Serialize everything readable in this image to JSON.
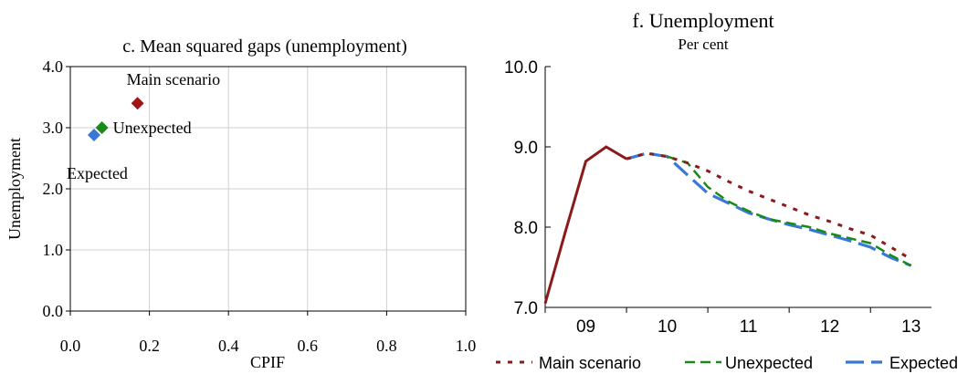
{
  "chart_data": [
    {
      "type": "scatter",
      "title": "c. Mean squared gaps (unemployment)",
      "xlabel": "CPIF",
      "ylabel": "Unemployment",
      "xlim": [
        0.0,
        1.0
      ],
      "ylim": [
        0.0,
        4.0
      ],
      "xticks": [
        "0.0",
        "0.2",
        "0.4",
        "0.6",
        "0.8",
        "1.0"
      ],
      "yticks": [
        "0.0",
        "1.0",
        "2.0",
        "3.0",
        "4.0"
      ],
      "grid": true,
      "points": [
        {
          "label": "Main scenario",
          "x": 0.17,
          "y": 3.4,
          "color": "#a31515"
        },
        {
          "label": "Unexpected",
          "x": 0.08,
          "y": 3.0,
          "color": "#178a17"
        },
        {
          "label": "Expected",
          "x": 0.06,
          "y": 2.88,
          "color": "#3a78d8"
        }
      ]
    },
    {
      "type": "line",
      "title": "f. Unemployment",
      "subtitle": "Per cent",
      "ylim": [
        7.0,
        10.0
      ],
      "xlim": [
        2009.0,
        2013.75
      ],
      "yticks": [
        "7.0",
        "8.0",
        "9.0",
        "10.0"
      ],
      "xticks": [
        {
          "label": "09",
          "x": 2009.5
        },
        {
          "label": "10",
          "x": 2010.5
        },
        {
          "label": "11",
          "x": 2011.5
        },
        {
          "label": "12",
          "x": 2012.5
        },
        {
          "label": "13",
          "x": 2013.5
        }
      ],
      "grid": false,
      "legend": "bottom",
      "series": [
        {
          "name": "Main scenario",
          "color": "#8b1a1a",
          "style": "dotted",
          "x": [
            2009.0,
            2009.25,
            2009.5,
            2009.75,
            2010.0,
            2010.25,
            2010.5,
            2010.75,
            2011.0,
            2011.25,
            2011.5,
            2011.75,
            2012.0,
            2012.25,
            2012.5,
            2012.75,
            2013.0,
            2013.25,
            2013.5
          ],
          "y": [
            7.05,
            7.95,
            8.82,
            9.0,
            8.85,
            8.92,
            8.88,
            8.8,
            8.7,
            8.57,
            8.45,
            8.35,
            8.25,
            8.15,
            8.07,
            7.98,
            7.9,
            7.75,
            7.6
          ]
        },
        {
          "name": "Unexpected",
          "color": "#178a17",
          "style": "dashed",
          "x": [
            2010.5,
            2010.75,
            2011.0,
            2011.25,
            2011.5,
            2011.75,
            2012.0,
            2012.25,
            2012.5,
            2012.75,
            2013.0,
            2013.25,
            2013.5
          ],
          "y": [
            8.88,
            8.8,
            8.5,
            8.32,
            8.2,
            8.1,
            8.05,
            8.0,
            7.92,
            7.86,
            7.8,
            7.65,
            7.52
          ]
        },
        {
          "name": "Expected",
          "color": "#3a78d8",
          "style": "longdash",
          "x": [
            2010.0,
            2010.25,
            2010.5,
            2010.75,
            2011.0,
            2011.25,
            2011.5,
            2011.75,
            2012.0,
            2012.25,
            2012.5,
            2012.75,
            2013.0,
            2013.25,
            2013.5
          ],
          "y": [
            8.85,
            8.92,
            8.88,
            8.65,
            8.42,
            8.3,
            8.18,
            8.1,
            8.03,
            7.97,
            7.9,
            7.83,
            7.75,
            7.62,
            7.52
          ]
        }
      ]
    }
  ]
}
